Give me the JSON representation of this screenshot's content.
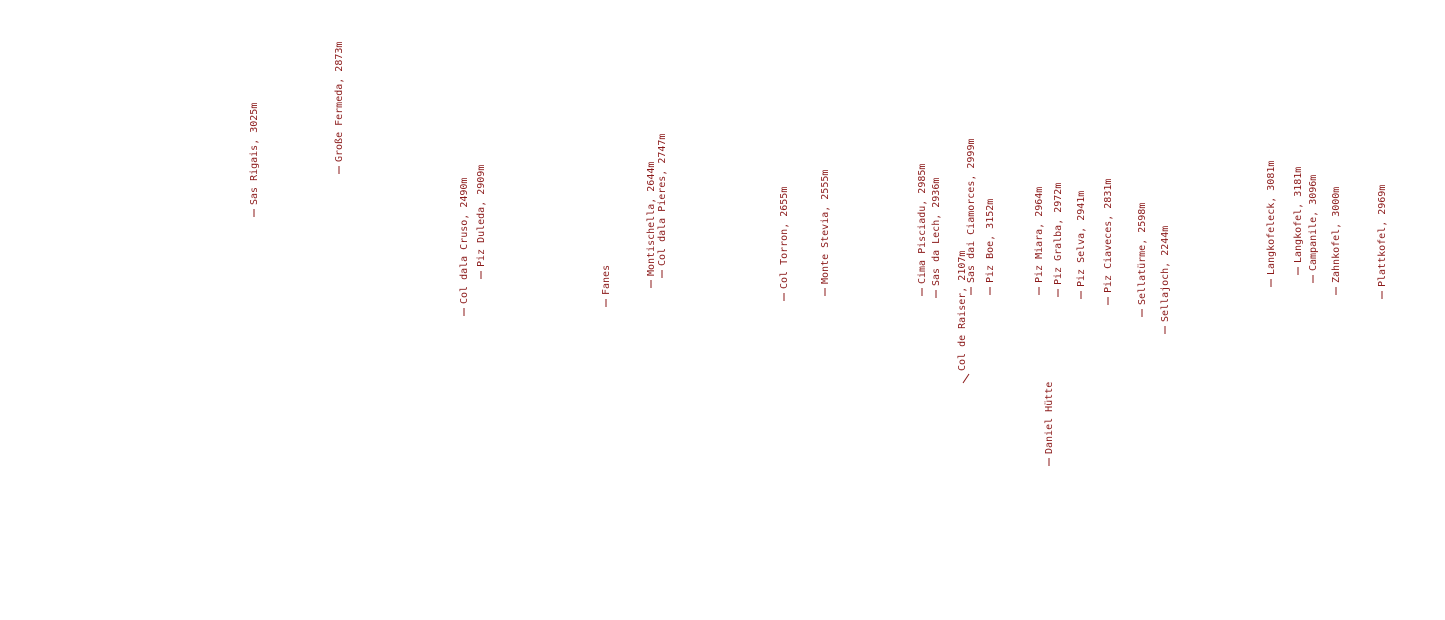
{
  "labels": [
    "Sas Rigais, 3025m",
    "Große Fermeda, 2873m",
    "Col dala Cruso, 2490m",
    "Piz Duleda, 2909m",
    "Fanes",
    "Montischella, 2644m",
    "Col dala Pieres, 2747m",
    "Col Torron, 2655m",
    "Monte Stevia, 2555m",
    "Cima Pisciadu, 2985m",
    "Sas da Lech, 2936m",
    "Col de Raiser, 2107m",
    "Sas dai Ciamorces, 2999m",
    "Piz Boe, 3152m",
    "Piz Miara, 2964m",
    "Piz Gralba, 2972m",
    "Piz Selva, 2941m",
    "Piz Ciaveces, 2831m",
    "Sellatürme, 2598m",
    "Sellajoch, 2244m",
    "Daniel Hütte",
    "Langkofeleck, 3081m",
    "Langkofel, 3181m",
    "Campanile, 3096m",
    "Zahnkofel, 3000m",
    "Plattkofel, 2969m"
  ]
}
